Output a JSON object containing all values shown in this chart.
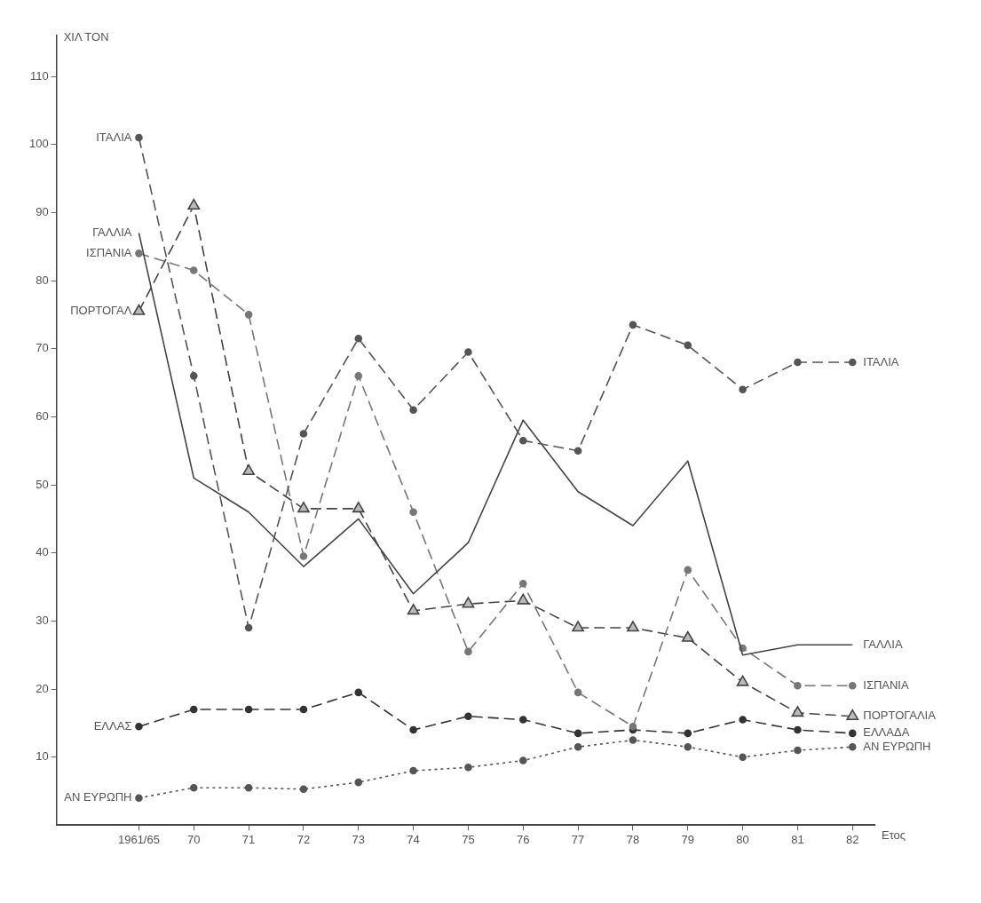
{
  "chart_data": {
    "type": "line",
    "ylabel": "ΧΙΛ ΤΟΝ",
    "xlabel": "Ετος",
    "categories": [
      "1961/65",
      "70",
      "71",
      "72",
      "73",
      "74",
      "75",
      "76",
      "77",
      "78",
      "79",
      "80",
      "81",
      "82"
    ],
    "ylim": [
      0,
      116
    ],
    "yticks": [
      10,
      20,
      30,
      40,
      50,
      60,
      70,
      80,
      90,
      100,
      110
    ],
    "grid": false,
    "legend": false,
    "series": [
      {
        "name": "ΙΤΑΛΙΑ",
        "color": "#555555",
        "line_style": "dashed",
        "marker": "circle",
        "values": [
          101,
          66,
          29,
          57.5,
          71.5,
          61,
          69.5,
          56.5,
          55,
          73.5,
          70.5,
          64,
          68,
          68
        ]
      },
      {
        "name": "ΓΑΛΛΙΑ",
        "color": "#444444",
        "line_style": "solid",
        "marker": "none",
        "values": [
          87,
          51,
          46,
          38,
          45,
          34,
          41.5,
          59.5,
          49,
          44,
          53.5,
          25,
          26.5,
          26.5
        ]
      },
      {
        "name": "ΙΣΠΑΝΙΑ",
        "color": "#777777",
        "line_style": "dashed",
        "marker": "circle",
        "values": [
          84,
          81.5,
          75,
          39.5,
          66,
          46,
          25.5,
          35.5,
          19.5,
          14.5,
          37.5,
          26,
          20.5,
          20.5
        ]
      },
      {
        "name": "ΠΟΡΤΟΓΑΛΙΑ",
        "color": "#444444",
        "line_style": "dashed",
        "marker": "triangle",
        "values": [
          75.5,
          91,
          52,
          46.5,
          46.5,
          31.5,
          32.5,
          33,
          29,
          29,
          27.5,
          21,
          16.5,
          16
        ]
      },
      {
        "name": "ΕΛΛΑΔΑ",
        "color": "#333333",
        "line_style": "dashed",
        "marker": "circle",
        "values": [
          14.5,
          17,
          17,
          17,
          19.5,
          14,
          16,
          15.5,
          13.5,
          14,
          13.5,
          15.5,
          14,
          13.5
        ]
      },
      {
        "name": "ΑΝ ΕΥΡΩΠΗ",
        "color": "#555555",
        "line_style": "dotted",
        "marker": "circle",
        "values": [
          4,
          5.5,
          5.5,
          5.3,
          6.3,
          8,
          8.5,
          9.5,
          11.5,
          12.5,
          11.5,
          10,
          11,
          11.5
        ]
      }
    ],
    "annotations": [
      {
        "text": "ΙΤΑΛΙΑ",
        "x": "1961/65",
        "y": 101
      },
      {
        "text": "ΓΑΛΛΙΑ",
        "x": "1961/65",
        "y": 87
      },
      {
        "text": "ΙΣΠΑΝΙΑ",
        "x": "1961/65",
        "y": 84
      },
      {
        "text": "ΠΟΡΤΟΓΑΛ",
        "x": "1961/65",
        "y": 75.5
      },
      {
        "text": "ΕΛΛΑΣ",
        "x": "1961/65",
        "y": 14.5
      },
      {
        "text": "ΑΝ ΕΥΡΩΠΗ",
        "x": "1961/65",
        "y": 4
      }
    ]
  }
}
